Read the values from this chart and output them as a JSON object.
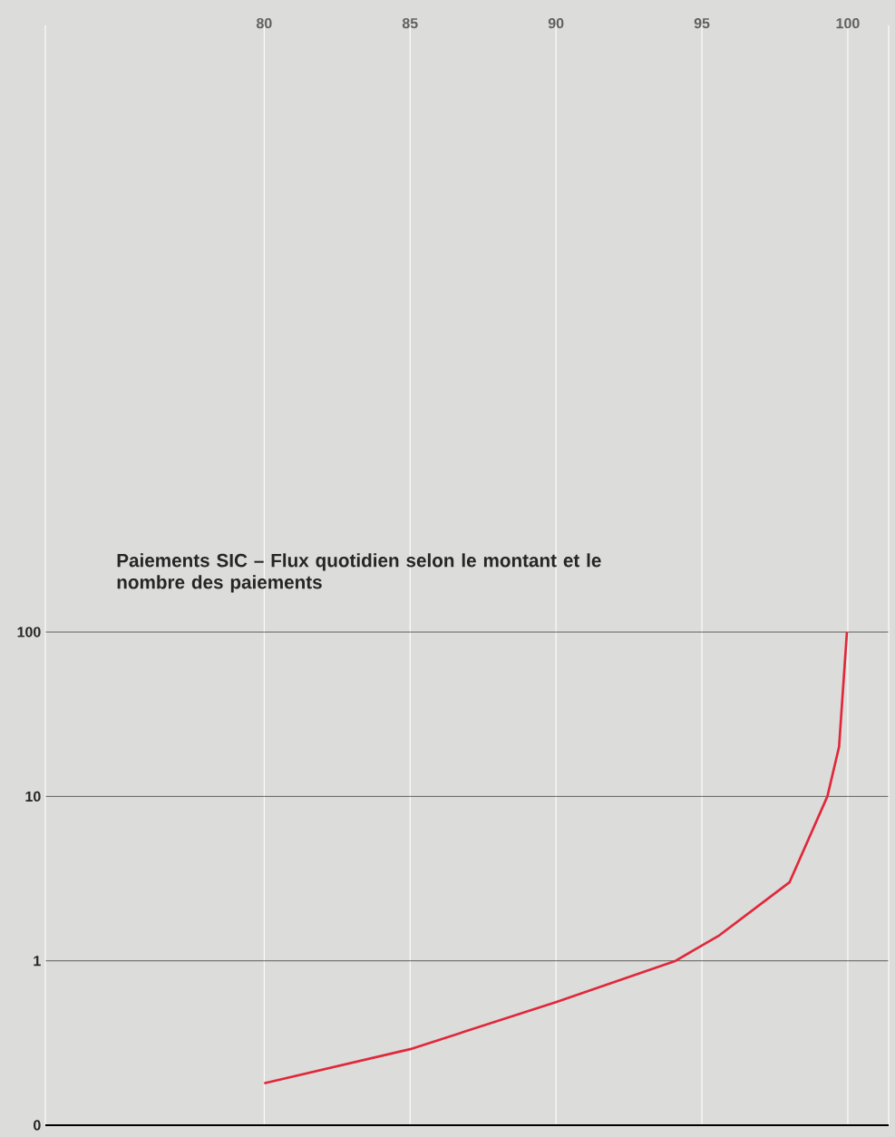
{
  "chart_data": {
    "type": "line",
    "title": "Paiements SIC – Flux quotidien selon le montant et le nombre des paiements",
    "x": [
      80,
      85,
      90,
      94.1,
      95.6,
      98.0,
      99.3,
      99.7,
      99.97
    ],
    "series": [
      {
        "color": "#e0283a",
        "values": [
          0.18,
          0.29,
          0.56,
          1,
          1.43,
          3.0,
          10,
          20,
          100
        ]
      }
    ],
    "xlim": [
      72.5,
      101.4
    ],
    "xticks": [
      80,
      85,
      90,
      95,
      100
    ],
    "ylim": [
      0.1,
      490000
    ],
    "yticks": [
      {
        "value": 0.1,
        "label": "0"
      },
      1,
      10,
      100
    ],
    "log": "y",
    "grid": true,
    "marker": "none",
    "line_style": "solid"
  }
}
